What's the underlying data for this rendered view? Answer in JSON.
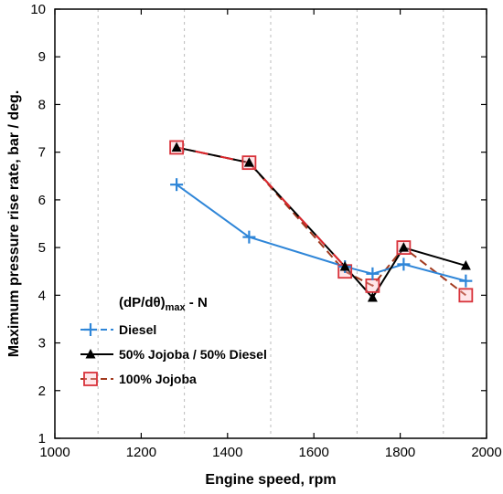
{
  "chart_data": {
    "type": "line",
    "xlabel": "Engine speed, rpm",
    "ylabel": "Maximum pressure rise rate, bar / deg.",
    "xlim": [
      1000,
      2000
    ],
    "ylim": [
      1,
      10
    ],
    "xticks": [
      1000,
      1200,
      1400,
      1600,
      1800,
      2000
    ],
    "yticks": [
      1,
      2,
      3,
      4,
      5,
      6,
      7,
      8,
      9,
      10
    ],
    "grid": "minor-vertical",
    "legend_position": "bottom-left",
    "legend_title": "(dP/dθ)",
    "legend_title_sub": "max",
    "legend_title_suffix": " - N",
    "series": [
      {
        "name": "Diesel",
        "color": "#2f86d8",
        "marker": "plus",
        "style": "solid",
        "x": [
          1282,
          1450,
          1672,
          1736,
          1808,
          1952
        ],
        "y": [
          6.32,
          5.22,
          4.6,
          4.45,
          4.65,
          4.3
        ]
      },
      {
        "name": "50% Jojoba / 50% Diesel",
        "color": "#000000",
        "marker": "triangle",
        "style": "solid",
        "x": [
          1282,
          1450,
          1672,
          1736,
          1808,
          1952
        ],
        "y": [
          7.1,
          6.78,
          4.6,
          3.95,
          5.0,
          4.62
        ]
      },
      {
        "name": "100% Jojoba",
        "color": "#a23a1e",
        "marker": "square",
        "style": "dashed",
        "x": [
          1282,
          1450,
          1672,
          1736,
          1808,
          1952
        ],
        "y": [
          7.1,
          6.78,
          4.5,
          4.2,
          5.0,
          4.0
        ]
      }
    ]
  }
}
